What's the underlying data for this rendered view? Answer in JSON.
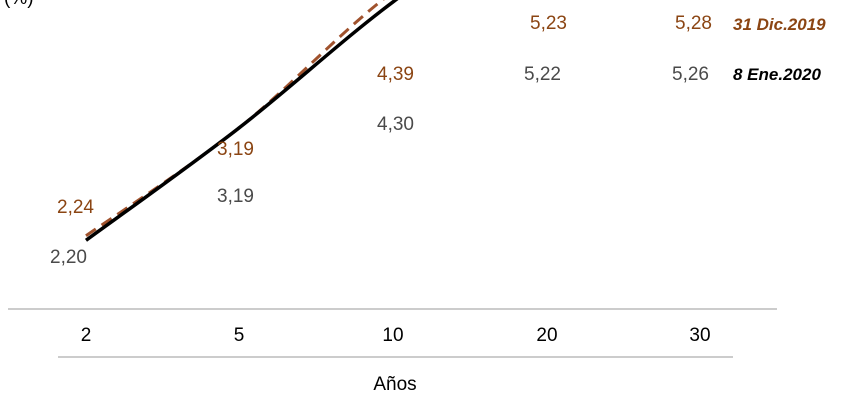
{
  "chart_data": {
    "type": "line",
    "ylabel": "(%)",
    "xlabel": "Años",
    "categories": [
      "2",
      "5",
      "10",
      "20",
      "30"
    ],
    "series": [
      {
        "name": "31 Dic.2019",
        "values": [
          2.24,
          3.19,
          4.39,
          5.23,
          5.28
        ],
        "labels": [
          "2,24",
          "3,19",
          "4,39",
          "5,23",
          "5,28"
        ],
        "color": "#A0522D",
        "style": "dashed"
      },
      {
        "name": "8 Ene.2020",
        "values": [
          2.2,
          3.19,
          4.3,
          5.22,
          5.26
        ],
        "labels": [
          "2,20",
          "3,19",
          "4,30",
          "5,22",
          "5,26"
        ],
        "color": "#000000",
        "style": "solid"
      }
    ],
    "ylim": [
      0,
      6
    ],
    "grid": false,
    "legend": "inline-right"
  }
}
